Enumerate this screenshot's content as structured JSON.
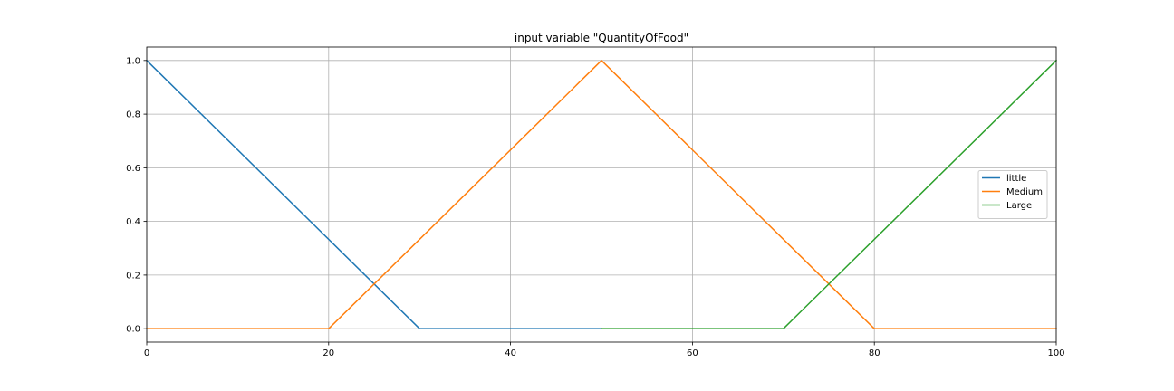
{
  "chart_data": {
    "type": "line",
    "title": "input variable \"QuantityOfFood\"",
    "xlabel": "",
    "ylabel": "",
    "xlim": [
      0,
      100
    ],
    "ylim": [
      -0.05,
      1.05
    ],
    "xticks": [
      0,
      20,
      40,
      60,
      80,
      100
    ],
    "yticks": [
      0.0,
      0.2,
      0.4,
      0.6,
      0.8,
      1.0
    ],
    "xtick_labels": [
      "0",
      "20",
      "40",
      "60",
      "80",
      "100"
    ],
    "ytick_labels": [
      "0.0",
      "0.2",
      "0.4",
      "0.6",
      "0.8",
      "1.0"
    ],
    "grid": true,
    "legend_position": "center-right",
    "series": [
      {
        "name": "little",
        "color": "#1f77b4",
        "points": [
          [
            0,
            1.0
          ],
          [
            30,
            0.0
          ],
          [
            50,
            0.0
          ]
        ]
      },
      {
        "name": "Medium",
        "color": "#ff7f0e",
        "points": [
          [
            0,
            0.0
          ],
          [
            20,
            0.0
          ],
          [
            50,
            1.0
          ],
          [
            80,
            0.0
          ],
          [
            100,
            0.0
          ]
        ]
      },
      {
        "name": "Large",
        "color": "#2ca02c",
        "points": [
          [
            50,
            0.0
          ],
          [
            70,
            0.0
          ],
          [
            100,
            1.0
          ]
        ]
      }
    ]
  }
}
